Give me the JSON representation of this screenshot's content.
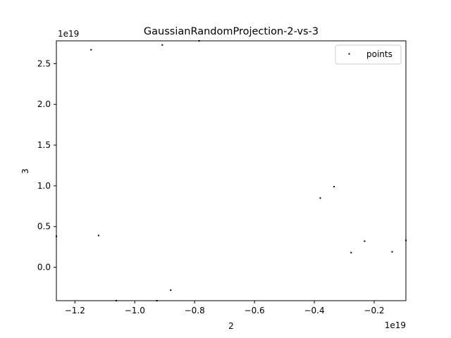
{
  "chart_data": {
    "type": "scatter",
    "title": "GaussianRandomProjection-2-vs-3",
    "xlabel": "2",
    "ylabel": "3",
    "x_offset_text": "1e19",
    "y_offset_text": "1e19",
    "xlim": [
      -1.262,
      -0.094
    ],
    "ylim": [
      -0.41,
      2.78
    ],
    "xticks": [
      {
        "value": -1.2,
        "label": "−1.2"
      },
      {
        "value": -1.0,
        "label": "−1.0"
      },
      {
        "value": -0.8,
        "label": "−0.8"
      },
      {
        "value": -0.6,
        "label": "−0.6"
      },
      {
        "value": -0.4,
        "label": "−0.4"
      },
      {
        "value": -0.2,
        "label": "−0.2"
      }
    ],
    "yticks": [
      {
        "value": 0.0,
        "label": "0.0"
      },
      {
        "value": 0.5,
        "label": "0.5"
      },
      {
        "value": 1.0,
        "label": "1.0"
      },
      {
        "value": 1.5,
        "label": "1.5"
      },
      {
        "value": 2.0,
        "label": "2.0"
      },
      {
        "value": 2.5,
        "label": "2.5"
      }
    ],
    "legend": {
      "label": "points",
      "position": "top-right"
    },
    "series": [
      {
        "name": "points",
        "color": "#000000",
        "points": [
          {
            "x": -1.146,
            "y": 2.67
          },
          {
            "x": -0.908,
            "y": 2.73
          },
          {
            "x": -0.785,
            "y": 2.78
          },
          {
            "x": -1.262,
            "y": 0.38
          },
          {
            "x": -1.121,
            "y": 0.39
          },
          {
            "x": -0.38,
            "y": 0.85
          },
          {
            "x": -0.334,
            "y": 0.99
          },
          {
            "x": -0.277,
            "y": 0.18
          },
          {
            "x": -0.232,
            "y": 0.32
          },
          {
            "x": -0.14,
            "y": 0.19
          },
          {
            "x": -0.094,
            "y": 0.33
          },
          {
            "x": -0.88,
            "y": -0.28
          },
          {
            "x": -0.926,
            "y": -0.41
          },
          {
            "x": -1.062,
            "y": -0.41
          }
        ]
      }
    ]
  }
}
